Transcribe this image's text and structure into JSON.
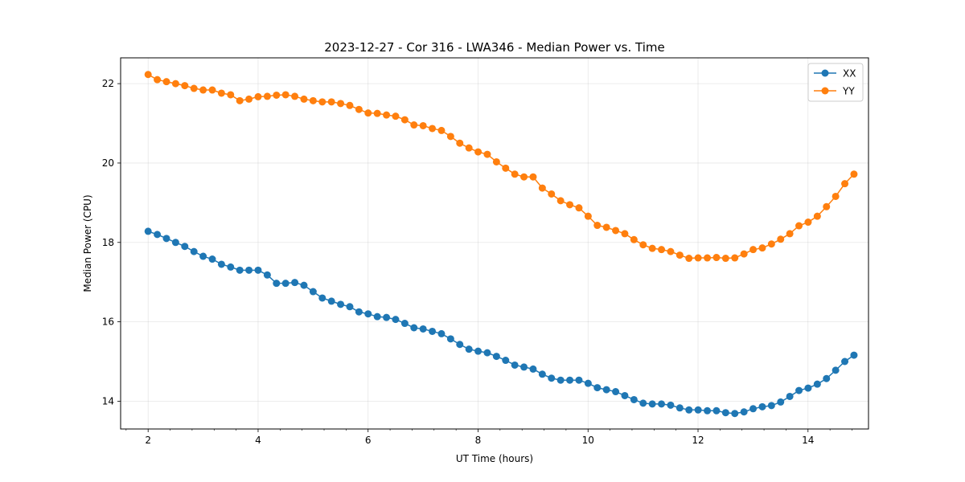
{
  "chart_data": {
    "type": "line",
    "title": "2023-12-27 - Cor 316 - LWA346 - Median Power vs. Time",
    "xlabel": "UT Time (hours)",
    "ylabel": "Median Power (CPU)",
    "xlim": [
      1.5,
      15.1
    ],
    "ylim": [
      13.3,
      22.65
    ],
    "xticks": [
      2,
      4,
      6,
      8,
      10,
      12,
      14
    ],
    "xtick_labels": [
      "2",
      "4",
      "6",
      "8",
      "10",
      "12",
      "14"
    ],
    "yticks": [
      14,
      16,
      18,
      20,
      22
    ],
    "ytick_labels": [
      "14",
      "16",
      "18",
      "20",
      "22"
    ],
    "grid": true,
    "legend_position": "top-right",
    "x_start": 2.0,
    "x_step": 0.1667,
    "series": [
      {
        "name": "XX",
        "color": "#1f77b4",
        "values": [
          18.28,
          18.2,
          18.1,
          18.0,
          17.9,
          17.77,
          17.65,
          17.58,
          17.45,
          17.38,
          17.3,
          17.3,
          17.3,
          17.18,
          16.97,
          16.97,
          16.99,
          16.92,
          16.76,
          16.6,
          16.52,
          16.44,
          16.38,
          16.25,
          16.2,
          16.13,
          16.11,
          16.06,
          15.96,
          15.85,
          15.82,
          15.76,
          15.7,
          15.57,
          15.43,
          15.31,
          15.26,
          15.22,
          15.13,
          15.03,
          14.91,
          14.86,
          14.81,
          14.68,
          14.58,
          14.53,
          14.53,
          14.53,
          14.45,
          14.34,
          14.29,
          14.24,
          14.14,
          14.04,
          13.95,
          13.93,
          13.93,
          13.9,
          13.83,
          13.78,
          13.78,
          13.76,
          13.76,
          13.71,
          13.69,
          13.73,
          13.81,
          13.86,
          13.89,
          13.98,
          14.12,
          14.27,
          14.33,
          14.43,
          14.57,
          14.78,
          15.0,
          15.16
        ]
      },
      {
        "name": "YY",
        "color": "#ff7f0e",
        "values": [
          22.23,
          22.1,
          22.05,
          22.0,
          21.95,
          21.88,
          21.84,
          21.84,
          21.76,
          21.72,
          21.57,
          21.61,
          21.67,
          21.68,
          21.71,
          21.72,
          21.68,
          21.61,
          21.57,
          21.54,
          21.54,
          21.5,
          21.45,
          21.35,
          21.26,
          21.25,
          21.21,
          21.18,
          21.09,
          20.96,
          20.94,
          20.87,
          20.82,
          20.67,
          20.5,
          20.38,
          20.28,
          20.22,
          20.03,
          19.87,
          19.72,
          19.65,
          19.65,
          19.37,
          19.22,
          19.05,
          18.95,
          18.87,
          18.66,
          18.43,
          18.38,
          18.3,
          18.22,
          18.07,
          17.94,
          17.85,
          17.82,
          17.77,
          17.68,
          17.6,
          17.61,
          17.61,
          17.62,
          17.6,
          17.61,
          17.71,
          17.82,
          17.86,
          17.96,
          18.08,
          18.22,
          18.42,
          18.51,
          18.66,
          18.9,
          19.16,
          19.48,
          19.72
        ]
      }
    ]
  }
}
